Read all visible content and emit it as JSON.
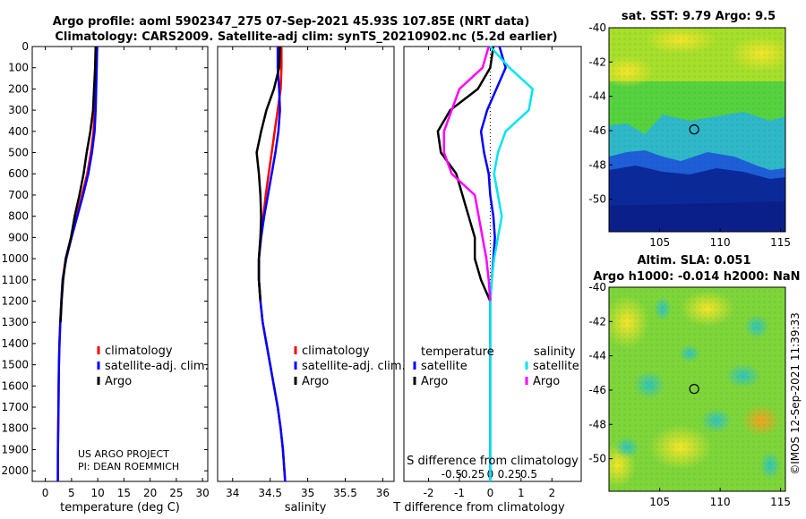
{
  "header": {
    "line1": "Argo profile: aoml 5902347_275 07-Sep-2021 45.93S 107.85E (NRT data)",
    "line2": "Climatology: CARS2009. Satellite-adj clim: synTS_20210902.nc (5.2d earlier)"
  },
  "colors": {
    "climatology": "#ff0000",
    "satellite": "#0000ff",
    "argo": "#000000",
    "sat_salinity": "#00e5ee",
    "argo_salinity": "#ff00ff"
  },
  "chart_data": [
    {
      "id": "temperature",
      "type": "line",
      "xlabel": "temperature (deg C)",
      "ylabel": "",
      "xlim": [
        -2.5,
        31
      ],
      "ylim": [
        2050,
        0
      ],
      "xticks": [
        0,
        5,
        10,
        15,
        20,
        25,
        30
      ],
      "yticks": [
        0,
        100,
        200,
        300,
        400,
        500,
        600,
        700,
        800,
        900,
        1000,
        1100,
        1200,
        1300,
        1400,
        1500,
        1600,
        1700,
        1800,
        1900,
        2000
      ],
      "legend": [
        "climatology",
        "satellite-adj. clim.",
        "Argo"
      ],
      "note": [
        "US ARGO PROJECT",
        "PI: DEAN ROEMMICH"
      ],
      "series": [
        {
          "name": "climatology",
          "color": "#ff0000",
          "x": [
            9.8,
            9.7,
            9.6,
            9.4,
            9.2,
            8.7,
            8.0,
            7.0,
            6.0,
            4.9,
            3.9,
            3.3,
            3.05,
            2.85,
            2.7,
            2.6,
            2.55,
            2.5,
            2.45,
            2.4,
            2.38
          ],
          "depth": [
            0,
            100,
            200,
            300,
            400,
            500,
            600,
            700,
            800,
            900,
            1000,
            1100,
            1200,
            1300,
            1400,
            1500,
            1600,
            1700,
            1800,
            1900,
            2050
          ]
        },
        {
          "name": "satellite-adj. clim.",
          "color": "#0000ff",
          "x": [
            9.9,
            9.8,
            9.7,
            9.6,
            9.4,
            8.9,
            8.2,
            7.2,
            6.1,
            5.0,
            4.0,
            3.3,
            3.05,
            2.85,
            2.7,
            2.6,
            2.55,
            2.5,
            2.45,
            2.4,
            2.38
          ],
          "depth": [
            0,
            100,
            200,
            300,
            400,
            500,
            600,
            700,
            800,
            900,
            1000,
            1100,
            1200,
            1300,
            1400,
            1500,
            1600,
            1700,
            1800,
            1900,
            2050
          ]
        },
        {
          "name": "Argo",
          "color": "#000000",
          "x": [
            9.6,
            9.5,
            9.3,
            9.1,
            8.6,
            7.9,
            7.3,
            6.5,
            5.6,
            4.9,
            3.9,
            3.4,
            3.1,
            2.9
          ],
          "depth": [
            0,
            100,
            200,
            300,
            400,
            500,
            600,
            700,
            800,
            900,
            1000,
            1100,
            1200,
            1300
          ]
        }
      ]
    },
    {
      "id": "salinity",
      "type": "line",
      "xlabel": "salinity",
      "xlim": [
        33.8,
        36.15
      ],
      "ylim": [
        2050,
        0
      ],
      "xticks": [
        34,
        34.5,
        35,
        35.5,
        36
      ],
      "xticklabels": [
        "34",
        "34.5",
        "35",
        "35.5",
        "36"
      ],
      "legend": [
        "climatology",
        "satellite-adj. clim.",
        "Argo"
      ],
      "series": [
        {
          "name": "climatology",
          "color": "#ff0000",
          "x": [
            34.65,
            34.65,
            34.64,
            34.6,
            34.56,
            34.52,
            34.48,
            34.44,
            34.41,
            34.37,
            34.35,
            34.35,
            34.37,
            34.4,
            34.45,
            34.5,
            34.55,
            34.6,
            34.64,
            34.67,
            34.7
          ],
          "depth": [
            0,
            100,
            200,
            300,
            400,
            500,
            600,
            700,
            800,
            900,
            1000,
            1100,
            1200,
            1300,
            1400,
            1500,
            1600,
            1700,
            1800,
            1900,
            2050
          ]
        },
        {
          "name": "satellite-adj. clim.",
          "color": "#0000ff",
          "x": [
            34.6,
            34.6,
            34.62,
            34.63,
            34.61,
            34.57,
            34.52,
            34.47,
            34.42,
            34.38,
            34.35,
            34.35,
            34.37,
            34.4,
            34.45,
            34.5,
            34.55,
            34.6,
            34.64,
            34.67,
            34.7
          ],
          "depth": [
            0,
            100,
            200,
            300,
            400,
            500,
            600,
            700,
            800,
            900,
            1000,
            1100,
            1200,
            1300,
            1400,
            1500,
            1600,
            1700,
            1800,
            1900,
            2050
          ]
        },
        {
          "name": "Argo",
          "color": "#000000",
          "x": [
            34.63,
            34.62,
            34.55,
            34.45,
            34.38,
            34.32,
            34.35,
            34.37,
            34.38,
            34.37,
            34.35,
            34.35,
            34.37
          ],
          "depth": [
            0,
            100,
            200,
            300,
            400,
            500,
            600,
            700,
            800,
            900,
            1000,
            1100,
            1200
          ]
        }
      ]
    },
    {
      "id": "difference",
      "type": "line",
      "xlabel": "T difference from climatology",
      "toplabel": "S difference from climatology",
      "xlim": [
        -2.8,
        2.95
      ],
      "ylim": [
        2050,
        0
      ],
      "xticks": [
        -2,
        -1,
        0,
        1,
        2
      ],
      "xticklabels": [
        "-2",
        "-1",
        "0",
        "1",
        "2"
      ],
      "sticks": [
        -0.5,
        -0.25,
        0,
        0.25,
        0.5
      ],
      "sticklabels": [
        "-0.5",
        "-0.25",
        "0",
        "0.25",
        "0.5"
      ],
      "legend_titles": [
        "temperature",
        "salinity"
      ],
      "legend": [
        "satellite",
        "Argo",
        "satellite",
        "Argo"
      ],
      "series": [
        {
          "name": "T satellite",
          "color": "#0000ff",
          "x": [
            0.3,
            0.5,
            0.2,
            -0.1,
            -0.3,
            -0.2,
            -0.05,
            0,
            0.1,
            0.15,
            0.1,
            0.05,
            0,
            0,
            0,
            0,
            0,
            0,
            0,
            0,
            0
          ],
          "depth": [
            0,
            100,
            200,
            300,
            400,
            500,
            600,
            700,
            800,
            900,
            1000,
            1100,
            1200,
            1300,
            1400,
            1500,
            1600,
            1700,
            1800,
            1900,
            2050
          ]
        },
        {
          "name": "T Argo",
          "color": "#000000",
          "x": [
            0.1,
            0.0,
            -0.4,
            -1.3,
            -1.7,
            -1.6,
            -1.1,
            -0.9,
            -0.7,
            -0.5,
            -0.5,
            -0.3,
            0
          ],
          "depth": [
            0,
            100,
            200,
            300,
            400,
            500,
            600,
            700,
            800,
            900,
            1000,
            1100,
            1200
          ]
        },
        {
          "name": "S satellite",
          "color": "#00e5ee",
          "x": [
            0.0,
            0.25,
            0.55,
            0.5,
            0.2,
            0.1,
            0.05,
            0.1,
            0.15,
            0.1,
            0.05,
            0.02,
            0,
            0,
            0,
            0,
            0,
            0,
            0,
            0,
            0
          ],
          "depth": [
            0,
            100,
            200,
            300,
            400,
            500,
            600,
            700,
            800,
            900,
            1000,
            1100,
            1200,
            1300,
            1400,
            1500,
            1600,
            1700,
            1800,
            1900,
            2050
          ]
        },
        {
          "name": "S Argo",
          "color": "#ff00ff",
          "x": [
            -0.02,
            -0.1,
            -0.4,
            -0.5,
            -0.6,
            -0.6,
            -0.5,
            -0.2,
            -0.15,
            -0.1,
            -0.05,
            -0.02,
            0
          ],
          "depth": [
            0,
            100,
            200,
            300,
            400,
            500,
            600,
            700,
            800,
            900,
            1000,
            1100,
            1200
          ]
        }
      ]
    },
    {
      "id": "sst_map",
      "type": "heatmap",
      "title": "sat. SST: 9.79 Argo: 9.5",
      "xticks": [
        105,
        110,
        115
      ],
      "yticks": [
        -40,
        -42,
        -44,
        -46,
        -48,
        -50
      ],
      "xlim": [
        100.8,
        115.4
      ],
      "ylim": [
        -51.9,
        -40
      ],
      "marker": {
        "lon": 107.85,
        "lat": -45.93
      }
    },
    {
      "id": "sla_map",
      "type": "heatmap",
      "title1": "Altim. SLA: 0.051",
      "title2": "Argo h1000: -0.014 h2000: NaN",
      "xticks": [
        105,
        110,
        115
      ],
      "yticks": [
        -40,
        -42,
        -44,
        -46,
        -48,
        -50
      ],
      "xlim": [
        100.8,
        115.4
      ],
      "ylim": [
        -51.9,
        -40
      ],
      "marker": {
        "lon": 107.85,
        "lat": -45.93
      }
    }
  ],
  "footer": {
    "stamp": "©IMOS 12-Sep-2021 11:39:33"
  }
}
